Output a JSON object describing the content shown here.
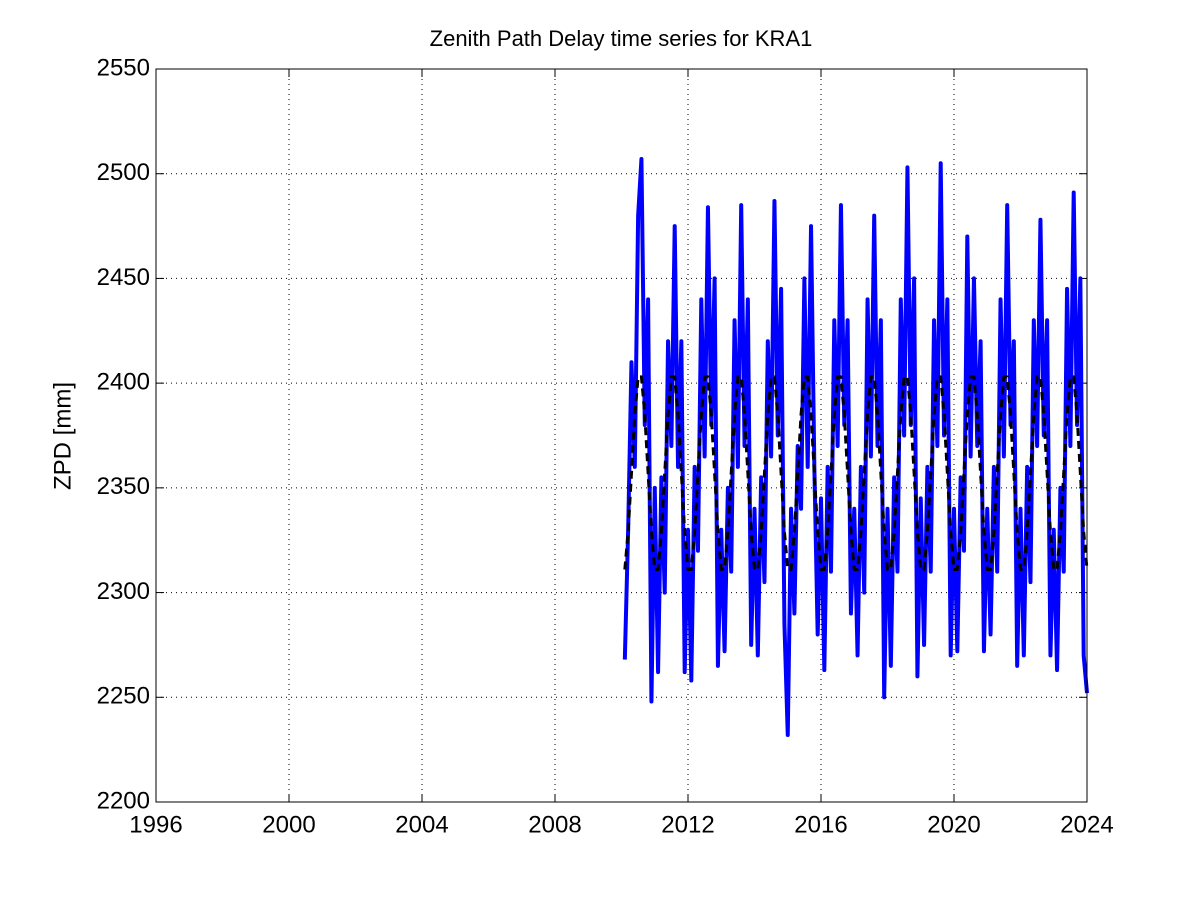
{
  "chart_data": {
    "type": "line",
    "title": "Zenith Path Delay time series for KRA1",
    "ylabel": "ZPD [mm]",
    "xlim": [
      1996,
      2024
    ],
    "xticks": [
      1996,
      2000,
      2004,
      2008,
      2012,
      2016,
      2020,
      2024
    ],
    "ylim": [
      2200,
      2550
    ],
    "yticks": [
      2200,
      2250,
      2300,
      2350,
      2400,
      2450,
      2500,
      2550
    ],
    "grid": true,
    "x": [
      2010.1,
      2010.2,
      2010.3,
      2010.4,
      2010.5,
      2010.6,
      2010.7,
      2010.8,
      2010.9,
      2011.0,
      2011.1,
      2011.2,
      2011.3,
      2011.4,
      2011.5,
      2011.6,
      2011.7,
      2011.8,
      2011.9,
      2012.0,
      2012.1,
      2012.2,
      2012.3,
      2012.4,
      2012.5,
      2012.6,
      2012.7,
      2012.8,
      2012.9,
      2013.0,
      2013.1,
      2013.2,
      2013.3,
      2013.4,
      2013.5,
      2013.6,
      2013.7,
      2013.8,
      2013.9,
      2014.0,
      2014.1,
      2014.2,
      2014.3,
      2014.4,
      2014.5,
      2014.6,
      2014.7,
      2014.8,
      2014.9,
      2015.0,
      2015.1,
      2015.2,
      2015.3,
      2015.4,
      2015.5,
      2015.6,
      2015.7,
      2015.8,
      2015.9,
      2016.0,
      2016.1,
      2016.2,
      2016.3,
      2016.4,
      2016.5,
      2016.6,
      2016.7,
      2016.8,
      2016.9,
      2017.0,
      2017.1,
      2017.2,
      2017.3,
      2017.4,
      2017.5,
      2017.6,
      2017.7,
      2017.8,
      2017.9,
      2018.0,
      2018.1,
      2018.2,
      2018.3,
      2018.4,
      2018.5,
      2018.6,
      2018.7,
      2018.8,
      2018.9,
      2019.0,
      2019.1,
      2019.2,
      2019.3,
      2019.4,
      2019.5,
      2019.6,
      2019.7,
      2019.8,
      2019.9,
      2020.0,
      2020.1,
      2020.2,
      2020.3,
      2020.4,
      2020.5,
      2020.6,
      2020.7,
      2020.8,
      2020.9,
      2021.0,
      2021.1,
      2021.2,
      2021.3,
      2021.4,
      2021.5,
      2021.6,
      2021.7,
      2021.8,
      2021.9,
      2022.0,
      2022.1,
      2022.2,
      2022.3,
      2022.4,
      2022.5,
      2022.6,
      2022.7,
      2022.8,
      2022.9,
      2023.0,
      2023.1,
      2023.2,
      2023.3,
      2023.4,
      2023.5,
      2023.6,
      2023.7,
      2023.8,
      2023.9,
      2024.0
    ],
    "series": [
      {
        "color": "#0000ff",
        "width": 4,
        "dashed": false,
        "values": [
          2268,
          2330,
          2410,
          2360,
          2480,
          2507,
          2380,
          2440,
          2248,
          2350,
          2262,
          2355,
          2300,
          2420,
          2370,
          2475,
          2360,
          2420,
          2262,
          2330,
          2258,
          2360,
          2320,
          2440,
          2365,
          2484,
          2380,
          2450,
          2265,
          2330,
          2272,
          2350,
          2310,
          2430,
          2360,
          2485,
          2370,
          2440,
          2275,
          2340,
          2270,
          2355,
          2305,
          2420,
          2365,
          2487,
          2375,
          2445,
          2285,
          2232,
          2340,
          2290,
          2370,
          2340,
          2450,
          2360,
          2475,
          2360,
          2280,
          2345,
          2263,
          2360,
          2310,
          2430,
          2370,
          2485,
          2380,
          2430,
          2290,
          2340,
          2270,
          2360,
          2300,
          2440,
          2365,
          2480,
          2370,
          2430,
          2250,
          2340,
          2265,
          2355,
          2310,
          2440,
          2375,
          2503,
          2380,
          2450,
          2260,
          2345,
          2275,
          2360,
          2310,
          2430,
          2370,
          2505,
          2375,
          2440,
          2270,
          2340,
          2272,
          2355,
          2320,
          2470,
          2365,
          2450,
          2370,
          2420,
          2272,
          2340,
          2280,
          2360,
          2310,
          2440,
          2365,
          2485,
          2380,
          2420,
          2265,
          2340,
          2270,
          2360,
          2305,
          2430,
          2370,
          2478,
          2375,
          2430,
          2270,
          2330,
          2263,
          2350,
          2310,
          2445,
          2370,
          2491,
          2380,
          2450,
          2270,
          2252
        ]
      },
      {
        "color": "#000000",
        "width": 3,
        "dashed": true,
        "values": [
          2311,
          2329,
          2357,
          2385,
          2403,
          2403,
          2385,
          2357,
          2329,
          2311,
          2311,
          2329,
          2357,
          2385,
          2403,
          2403,
          2385,
          2357,
          2329,
          2311,
          2311,
          2329,
          2357,
          2385,
          2403,
          2403,
          2385,
          2357,
          2329,
          2311,
          2311,
          2329,
          2357,
          2385,
          2403,
          2403,
          2385,
          2357,
          2329,
          2311,
          2311,
          2329,
          2357,
          2385,
          2403,
          2403,
          2385,
          2357,
          2329,
          2311,
          2311,
          2329,
          2357,
          2385,
          2403,
          2403,
          2385,
          2357,
          2329,
          2311,
          2311,
          2329,
          2357,
          2385,
          2403,
          2403,
          2385,
          2357,
          2329,
          2311,
          2311,
          2329,
          2357,
          2385,
          2403,
          2403,
          2385,
          2357,
          2329,
          2311,
          2311,
          2329,
          2357,
          2385,
          2403,
          2403,
          2385,
          2357,
          2329,
          2311,
          2311,
          2329,
          2357,
          2385,
          2403,
          2403,
          2385,
          2357,
          2329,
          2311,
          2311,
          2329,
          2357,
          2385,
          2403,
          2403,
          2385,
          2357,
          2329,
          2311,
          2311,
          2329,
          2357,
          2385,
          2403,
          2403,
          2385,
          2357,
          2329,
          2311,
          2311,
          2329,
          2357,
          2385,
          2403,
          2403,
          2385,
          2357,
          2329,
          2311,
          2311,
          2329,
          2357,
          2385,
          2403,
          2403,
          2385,
          2357,
          2329,
          2311
        ]
      }
    ]
  }
}
